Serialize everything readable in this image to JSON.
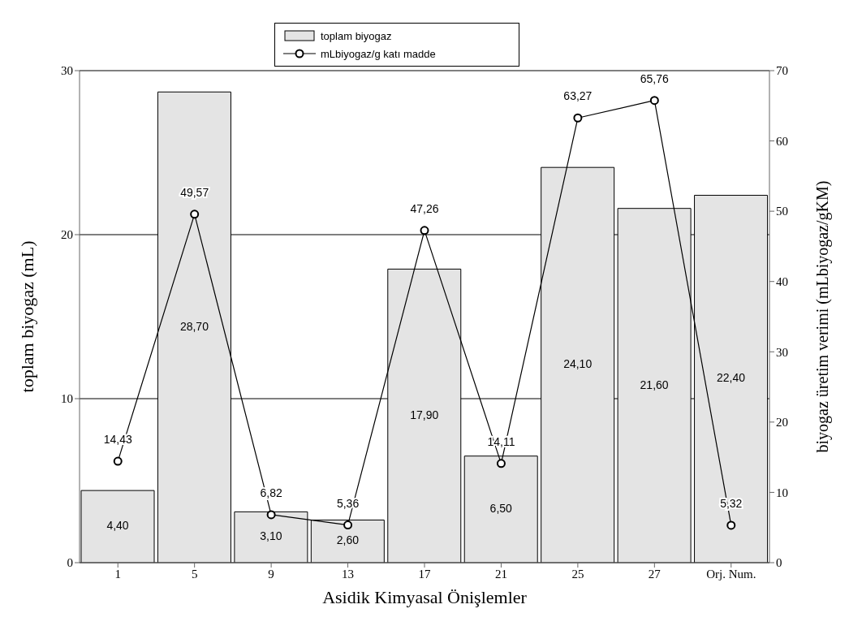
{
  "chart_data": {
    "type": "bar",
    "xlabel": "Asidik Kimyasal Önişlemler",
    "ylabel": "toplam biyogaz (mL)",
    "y2label": "biyogaz üretim verimi (mLbiyogaz/gKM)",
    "categories": [
      "1",
      "5",
      "9",
      "13",
      "17",
      "21",
      "25",
      "27",
      "Orj. Num."
    ],
    "series": [
      {
        "name": "toplam biyogaz",
        "color": "#e4e4e4",
        "values": [
          4.4,
          28.7,
          3.1,
          2.6,
          17.9,
          6.5,
          24.1,
          21.6,
          22.4
        ],
        "value_labels": [
          "4,40",
          "28,70",
          "3,10",
          "2,60",
          "17,90",
          "6,50",
          "24,10",
          "21,60",
          "22,40"
        ]
      },
      {
        "name": "mLbiyogaz/g katı madde",
        "type": "line",
        "axis": "y2",
        "color": "#000000",
        "marker": "circle",
        "values": [
          14.43,
          49.57,
          6.82,
          5.36,
          47.26,
          14.11,
          63.27,
          65.76,
          5.32
        ],
        "value_labels": [
          "14,43",
          "49,57",
          "6,82",
          "5,36",
          "47,26",
          "14,11",
          "63,27",
          "65,76",
          "5,32"
        ]
      }
    ],
    "ylim": [
      0,
      30
    ],
    "yticks": [
      0,
      10,
      20,
      30
    ],
    "y2lim": [
      0,
      70
    ],
    "y2ticks": [
      0,
      10,
      20,
      30,
      40,
      50,
      60,
      70
    ],
    "grid": "y",
    "legend": "top"
  }
}
